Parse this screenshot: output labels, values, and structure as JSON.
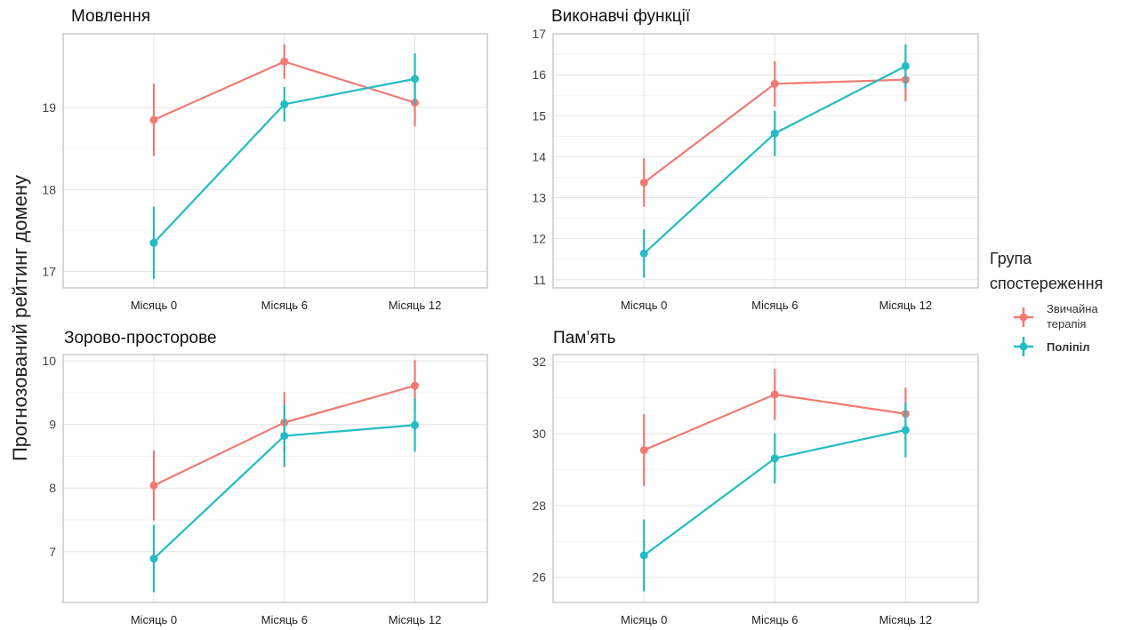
{
  "figure": {
    "ylabel": "Прогнозований рейтинг домену",
    "legend": {
      "title_line1": "Група",
      "title_line2": "спостереження",
      "items": [
        {
          "label_line1": "Звичайна",
          "label_line2": "терапія",
          "color": "#F07A72"
        },
        {
          "label_line1": "Поліпіл",
          "label_line2": "",
          "color": "#23BCC4"
        }
      ]
    }
  },
  "colors": {
    "usual": "#F07A72",
    "polypill": "#23BCC4",
    "panel_border": "#BDBDBD",
    "grid_major": "#E4E4E4",
    "grid_minor": "#F1F1F1"
  },
  "chart_data": [
    {
      "type": "line",
      "title": "Мовлення",
      "categories": [
        "Місяць 0",
        "Місяць 6",
        "Місяць 12"
      ],
      "yticks": [
        17,
        18,
        19
      ],
      "ylim": [
        16.8,
        19.9
      ],
      "series": [
        {
          "name": "Звичайна терапія",
          "values": [
            18.85,
            19.56,
            19.06
          ],
          "lower": [
            18.41,
            19.35,
            18.77
          ],
          "upper": [
            19.29,
            19.77,
            19.35
          ]
        },
        {
          "name": "Поліпіл",
          "values": [
            17.35,
            19.04,
            19.35
          ],
          "lower": [
            16.91,
            18.83,
            19.04
          ],
          "upper": [
            17.79,
            19.25,
            19.66
          ]
        }
      ]
    },
    {
      "type": "line",
      "title": "Виконавчі функції",
      "categories": [
        "Місяць 0",
        "Місяць 6",
        "Місяць 12"
      ],
      "yticks": [
        11,
        12,
        13,
        14,
        15,
        16,
        17
      ],
      "ylim": [
        10.8,
        17.0
      ],
      "series": [
        {
          "name": "Звичайна терапія",
          "values": [
            13.37,
            15.78,
            15.88
          ],
          "lower": [
            12.78,
            15.22,
            15.35
          ],
          "upper": [
            13.96,
            16.33,
            16.41
          ]
        },
        {
          "name": "Поліпіл",
          "values": [
            11.64,
            14.57,
            16.21
          ],
          "lower": [
            11.05,
            14.02,
            15.68
          ],
          "upper": [
            12.23,
            15.12,
            16.74
          ]
        }
      ]
    },
    {
      "type": "line",
      "title": "Зорово-просторове",
      "categories": [
        "Місяць 0",
        "Місяць 6",
        "Місяць 12"
      ],
      "yticks": [
        7,
        8,
        9,
        10
      ],
      "ylim": [
        6.2,
        10.1
      ],
      "series": [
        {
          "name": "Звичайна терапія",
          "values": [
            8.04,
            9.03,
            9.61
          ],
          "lower": [
            7.49,
            8.55,
            9.21
          ],
          "upper": [
            8.59,
            9.51,
            10.01
          ]
        },
        {
          "name": "Поліпіл",
          "values": [
            6.89,
            8.82,
            8.99
          ],
          "lower": [
            6.36,
            8.33,
            8.57
          ],
          "upper": [
            7.42,
            9.31,
            9.41
          ]
        }
      ]
    },
    {
      "type": "line",
      "title": "Пам’ять",
      "categories": [
        "Місяць 0",
        "Місяць 6",
        "Місяць 12"
      ],
      "yticks": [
        26,
        28,
        30,
        32
      ],
      "ylim": [
        25.3,
        32.2
      ],
      "series": [
        {
          "name": "Звичайна терапія",
          "values": [
            29.54,
            31.09,
            30.55
          ],
          "lower": [
            28.54,
            30.38,
            29.82
          ],
          "upper": [
            30.54,
            31.8,
            31.28
          ]
        },
        {
          "name": "Поліпіл",
          "values": [
            26.61,
            29.31,
            30.1
          ],
          "lower": [
            25.61,
            28.61,
            29.34
          ],
          "upper": [
            27.61,
            30.01,
            30.86
          ]
        }
      ]
    }
  ]
}
